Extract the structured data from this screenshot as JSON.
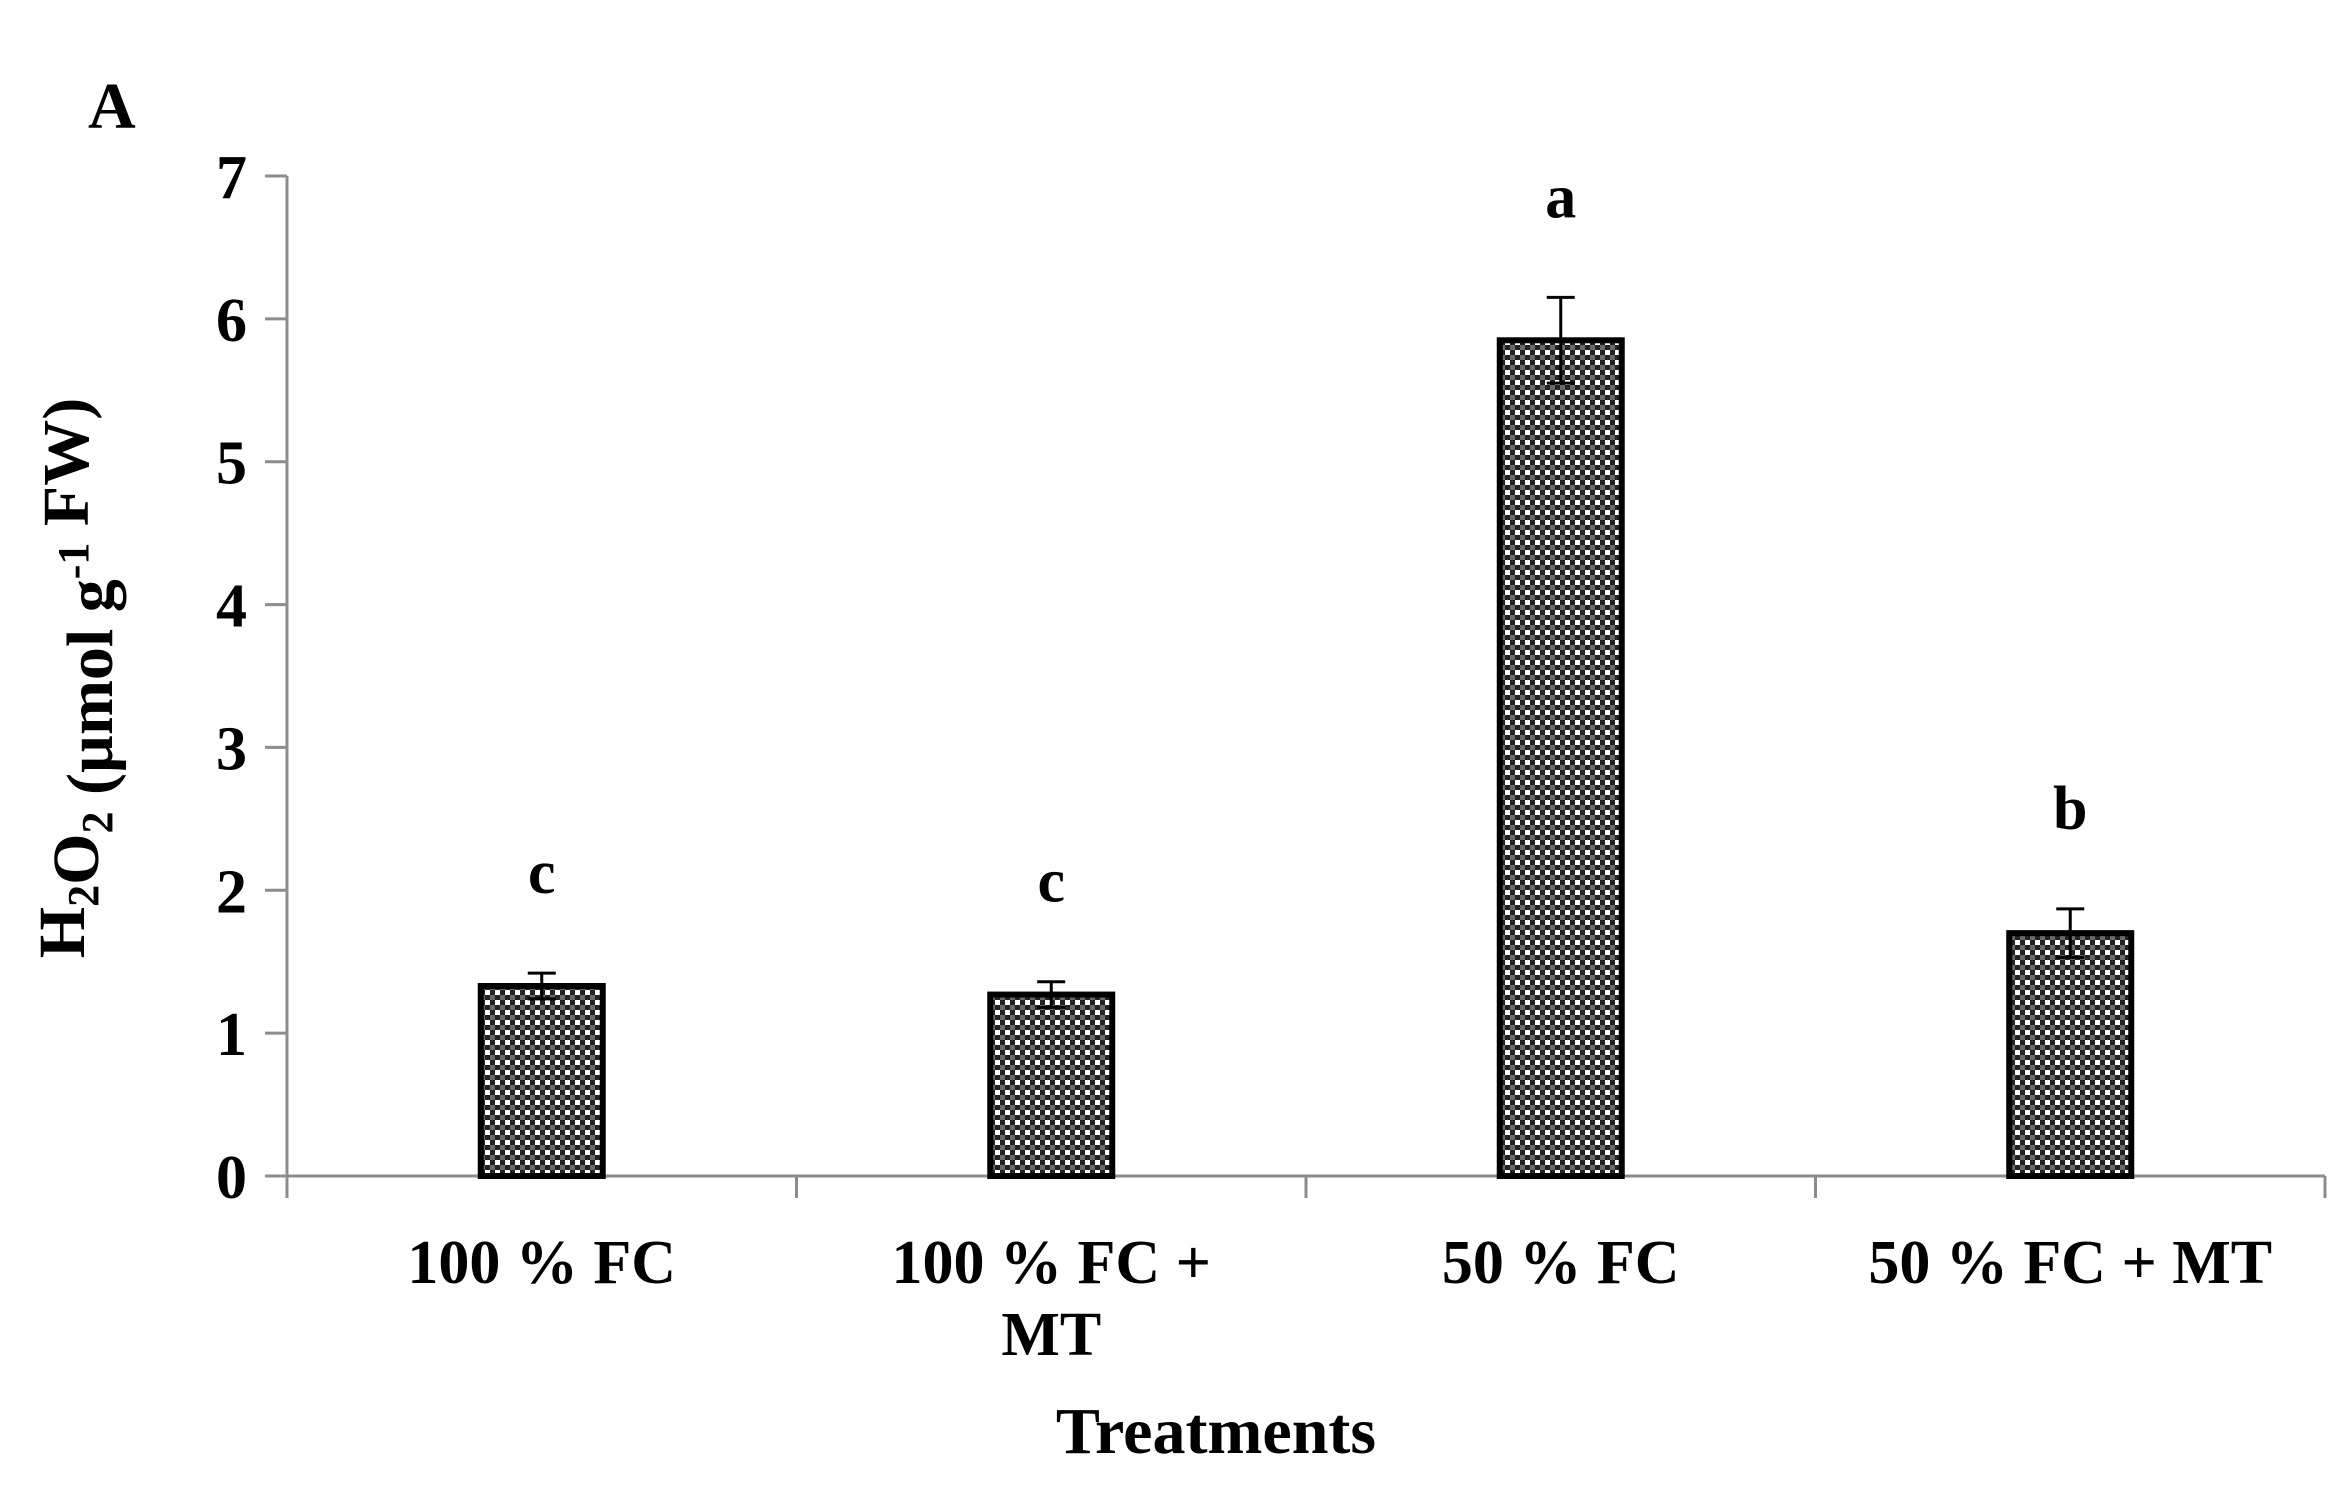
{
  "panel_label": "A",
  "chart_data": {
    "type": "bar",
    "title": "",
    "xlabel": "Treatments",
    "ylabel": {
      "parts": [
        {
          "text": "H",
          "style": "normal"
        },
        {
          "text": "2",
          "style": "sub"
        },
        {
          "text": "O",
          "style": "normal"
        },
        {
          "text": "2",
          "style": "sub"
        },
        {
          "text": " (µmol g",
          "style": "normal"
        },
        {
          "text": "-1",
          "style": "sup"
        },
        {
          "text": " FW)",
          "style": "normal"
        }
      ]
    },
    "categories": [
      [
        "100 % FC"
      ],
      [
        "100 % FC +",
        "MT"
      ],
      [
        "50 % FC"
      ],
      [
        "50 % FC + MT"
      ]
    ],
    "values": [
      1.33,
      1.27,
      5.85,
      1.7
    ],
    "errors": [
      0.09,
      0.09,
      0.3,
      0.17
    ],
    "significance": [
      "c",
      "c",
      "a",
      "b"
    ],
    "ylim": [
      0,
      7
    ],
    "yticks": [
      "0",
      "1",
      "2",
      "3",
      "4",
      "5",
      "6",
      "7"
    ],
    "grid": false,
    "legend": "none",
    "bar_pattern": "checkered-dots",
    "colors": {
      "bar_fill": "#4a4a4a",
      "bar_edge": "#000000",
      "axis": "#8c8c8c",
      "text": "#000000"
    }
  }
}
